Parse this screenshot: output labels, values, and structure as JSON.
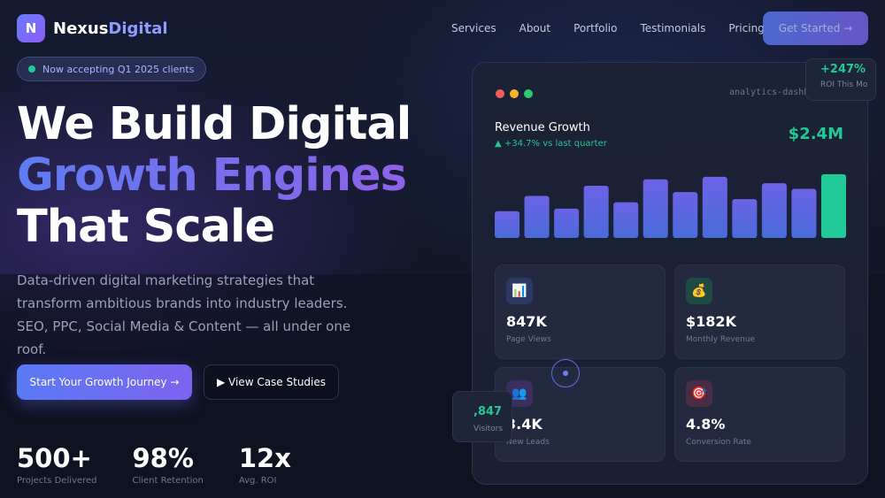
{
  "nav": {
    "logo_letter": "N",
    "logo_text_a": "Nexus",
    "logo_text_b": "Digital",
    "links": [
      "Services",
      "About",
      "Portfolio",
      "Testimonials",
      "Pricing"
    ],
    "cta": "Get Started →"
  },
  "hero": {
    "badge": "Now accepting Q1 2025 clients",
    "title_line1": "We Build Digital",
    "title_line2": "Growth Engines",
    "title_line3": "That Scale",
    "lead": "Data-driven digital marketing strategies that transform ambitious brands into industry leaders. SEO, PPC, Social Media & Content — all under one roof.",
    "primary_button": "Start Your Growth Journey →",
    "secondary_button": "▶ View Case Studies",
    "stats": [
      {
        "value": "500+",
        "label": "Projects Delivered"
      },
      {
        "value": "98%",
        "label": "Client Retention"
      },
      {
        "value": "12x",
        "label": "Avg. ROI"
      }
    ]
  },
  "dashboard": {
    "url": "analytics-dashb",
    "revenue_title": "Revenue Growth",
    "revenue_sub": "▲ +34.7% vs last quarter",
    "revenue_value": "$2.4M",
    "bar_levels": [
      0.42,
      0.66,
      0.46,
      0.82,
      0.56,
      0.92,
      0.72,
      0.96,
      0.61,
      0.86,
      0.77,
      1.0
    ],
    "highlight_color": "#20c997",
    "bar_color_top": "#6b63e6",
    "bar_color_bottom": "#4a6bd8",
    "tiles": [
      {
        "icon": "📊",
        "icon_name": "bar-chart-icon",
        "value": "847K",
        "label": "Page Views"
      },
      {
        "icon": "💰",
        "icon_name": "money-bag-icon",
        "value": "$182K",
        "label": "Monthly Revenue"
      },
      {
        "icon": "👥",
        "icon_name": "users-icon",
        "value": "3.4K",
        "label": "New Leads"
      },
      {
        "icon": "🎯",
        "icon_name": "target-icon",
        "value": "4.8%",
        "label": "Conversion Rate"
      }
    ]
  },
  "floats": {
    "roi_value": "+247%",
    "roi_label": "ROI This Mo",
    "visitors_value": ",847",
    "visitors_label": "Visitors"
  }
}
